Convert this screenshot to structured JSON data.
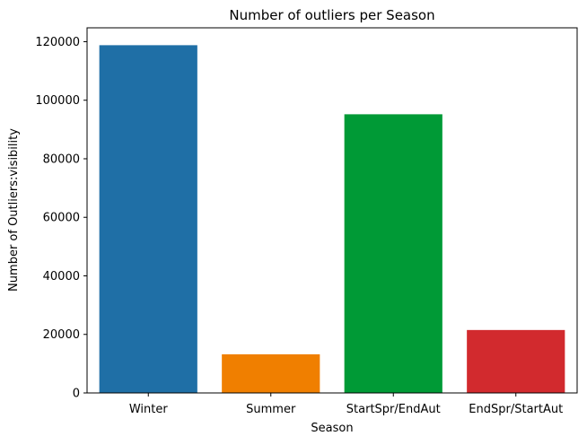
{
  "chart_data": {
    "type": "bar",
    "title": "Number of outliers per Season",
    "xlabel": "Season",
    "ylabel": "Number of Outliers:visibility",
    "categories": [
      "Winter",
      "Summer",
      "StartSpr/EndAut",
      "EndSpr/StartAut"
    ],
    "values": [
      118800,
      13200,
      95200,
      21500
    ],
    "colors": [
      "#1f6fa6",
      "#f07f00",
      "#009a36",
      "#d22a2e"
    ],
    "ylim": [
      0,
      124740
    ],
    "yticks": [
      0,
      20000,
      40000,
      60000,
      80000,
      100000,
      120000
    ],
    "grid": false,
    "legend": false
  }
}
